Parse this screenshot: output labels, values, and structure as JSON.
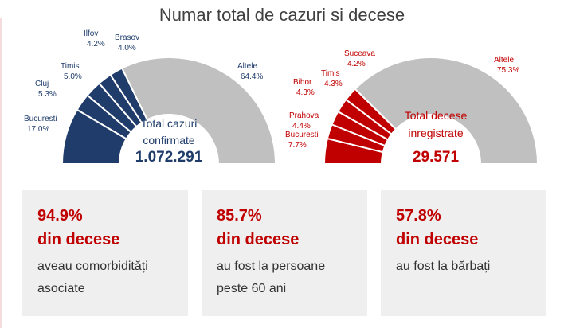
{
  "title": "Numar total de cazuri si decese",
  "colors": {
    "blue": "#1f3c6b",
    "red": "#c00000",
    "gray": "#c0c0c0"
  },
  "chart_data": [
    {
      "type": "pie",
      "subtype": "half-donut",
      "center_label_1": "Total cazuri",
      "center_label_2": "confirmate",
      "total": "1.072.291",
      "slices": [
        {
          "name": "Bucuresti",
          "value": 17.0,
          "label": "17.0%"
        },
        {
          "name": "Cluj",
          "value": 5.3,
          "label": "5.3%"
        },
        {
          "name": "Timis",
          "value": 5.0,
          "label": "5.0%"
        },
        {
          "name": "Ilfov",
          "value": 4.2,
          "label": "4.2%"
        },
        {
          "name": "Brasov",
          "value": 4.0,
          "label": "4.0%"
        },
        {
          "name": "Altele",
          "value": 64.4,
          "label": "64.4%"
        }
      ]
    },
    {
      "type": "pie",
      "subtype": "half-donut",
      "center_label_1": "Total decese",
      "center_label_2": "inregistrate",
      "total": "29.571",
      "slices": [
        {
          "name": "Bucuresti",
          "value": 7.7,
          "label": "7.7%"
        },
        {
          "name": "Prahova",
          "value": 4.4,
          "label": "4.4%"
        },
        {
          "name": "Bihor",
          "value": 4.3,
          "label": "4.3%"
        },
        {
          "name": "Timis",
          "value": 4.3,
          "label": "4.3%"
        },
        {
          "name": "Suceava",
          "value": 4.2,
          "label": "4.2%"
        },
        {
          "name": "Altele",
          "value": 75.3,
          "label": "75.3%"
        }
      ]
    }
  ],
  "cards": [
    {
      "pct": "94.9%",
      "sub": "din decese",
      "line1": "aveau comorbidități",
      "line2": "asociate"
    },
    {
      "pct": "85.7%",
      "sub": "din decese",
      "line1": "au fost la persoane",
      "line2": "peste 60 ani"
    },
    {
      "pct": "57.8%",
      "sub": "din decese",
      "line1": "au fost la bărbați",
      "line2": ""
    }
  ]
}
